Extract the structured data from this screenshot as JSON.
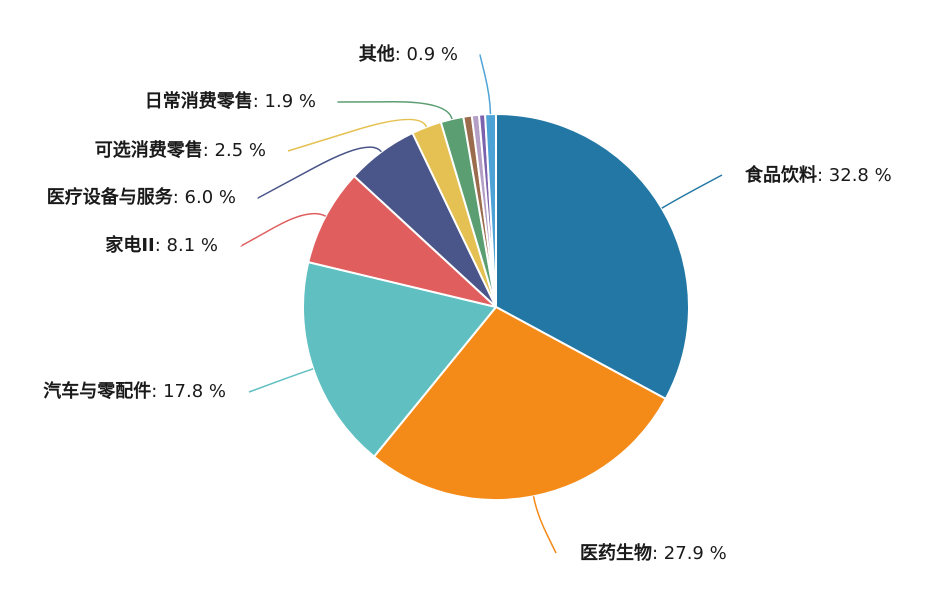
{
  "chart_data": {
    "type": "pie",
    "start_angle": 90,
    "direction": "clockwise",
    "value_suffix": " %",
    "slices": [
      {
        "label": "食品饮料",
        "value": 32.8,
        "color": "#2277a4"
      },
      {
        "label": "医药生物",
        "value": 27.9,
        "color": "#f48a18"
      },
      {
        "label": "汽车与零配件",
        "value": 17.8,
        "color": "#5fbfc1"
      },
      {
        "label": "家电ⅠⅠ",
        "value": 8.1,
        "color": "#e05e5e"
      },
      {
        "label": "医疗设备与服务",
        "value": 6.0,
        "color": "#4a5589"
      },
      {
        "label": "可选消费零售",
        "value": 2.5,
        "color": "#e4c152"
      },
      {
        "label": "日常消费零售",
        "value": 1.9,
        "color": "#5b9e72"
      },
      {
        "label": "",
        "value": 0.7,
        "color": "#9a6b4c"
      },
      {
        "label": "",
        "value": 0.6,
        "color": "#b49fc7"
      },
      {
        "label": "",
        "value": 0.5,
        "color": "#7c61ac"
      },
      {
        "label": "其他",
        "value": 0.9,
        "color": "#4da3d6"
      }
    ]
  }
}
